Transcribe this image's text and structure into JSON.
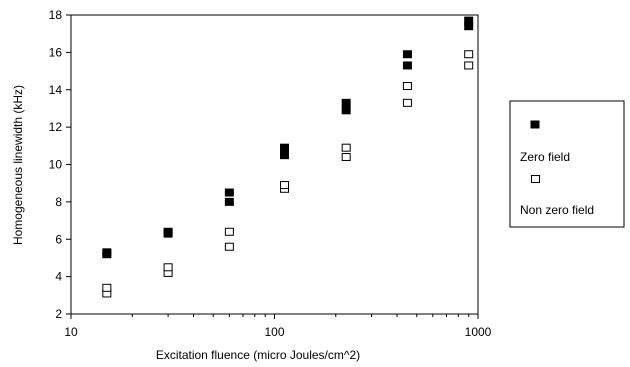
{
  "chart_data": {
    "type": "scatter",
    "xscale": "log",
    "xlim": [
      10,
      1000
    ],
    "ylim": [
      2,
      18
    ],
    "xticks": [
      10,
      100,
      1000
    ],
    "xtick_labels": [
      "10",
      "100",
      "1000"
    ],
    "yticks": [
      2,
      4,
      6,
      8,
      10,
      12,
      14,
      16,
      18
    ],
    "ytick_labels": [
      "2",
      "4",
      "6",
      "8",
      "10",
      "12",
      "14",
      "16",
      "18"
    ],
    "xlabel": "Excitation fluence (micro Joules/cm^2)",
    "ylabel": "Homogeneous linewidth (kHz)",
    "grid": false,
    "legend": "right",
    "series": [
      {
        "name": "Zero field",
        "marker": "filled-square",
        "color": "#000000",
        "x": [
          15,
          15,
          30,
          30,
          60,
          60,
          112,
          112,
          225,
          225,
          450,
          450,
          900,
          900
        ],
        "y": [
          5.2,
          5.3,
          6.3,
          6.4,
          8.0,
          8.5,
          10.5,
          10.9,
          12.9,
          13.3,
          15.3,
          15.9,
          17.4,
          17.7
        ]
      },
      {
        "name": "Non zero field",
        "marker": "open-square",
        "color": "#000000",
        "x": [
          15,
          15,
          30,
          30,
          60,
          60,
          112,
          112,
          225,
          225,
          450,
          450,
          900,
          900
        ],
        "y": [
          3.1,
          3.4,
          4.2,
          4.5,
          5.6,
          6.4,
          8.7,
          8.9,
          10.4,
          10.9,
          13.3,
          14.2,
          15.3,
          15.9
        ]
      }
    ]
  }
}
